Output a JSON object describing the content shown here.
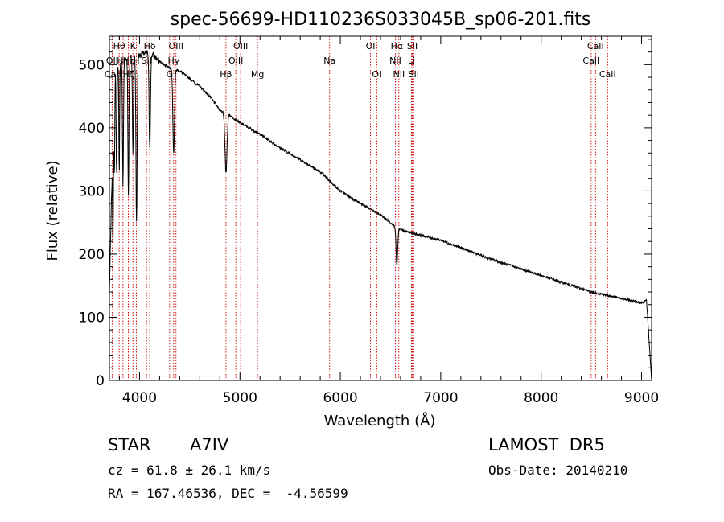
{
  "chart_data": {
    "type": "line",
    "title": "spec-56699-HD110236S033045B_sp06-201.fits",
    "xlabel": "Wavelength (Å)",
    "ylabel": "Flux (relative)",
    "xlim": [
      3700,
      9100
    ],
    "ylim": [
      0,
      545
    ],
    "xticks": [
      4000,
      5000,
      6000,
      7000,
      8000,
      9000
    ],
    "yticks": [
      0,
      100,
      200,
      300,
      400,
      500
    ],
    "grid": false,
    "line_color": "#000000",
    "marker_color": "#cc0000",
    "continuum": {
      "x": [
        3700,
        3750,
        3800,
        3900,
        4000,
        4100,
        4200,
        4300,
        4400,
        4500,
        4600,
        4700,
        4800,
        4900,
        5000,
        5200,
        5400,
        5600,
        5800,
        6000,
        6200,
        6400,
        6600,
        6800,
        7000,
        7200,
        7500,
        8000,
        8500,
        9000,
        9050,
        9100
      ],
      "y": [
        140,
        490,
        505,
        510,
        515,
        520,
        505,
        495,
        490,
        478,
        465,
        450,
        428,
        420,
        408,
        390,
        368,
        350,
        330,
        300,
        280,
        262,
        238,
        230,
        222,
        210,
        192,
        166,
        140,
        123,
        126,
        0
      ]
    },
    "absorption_lines": [
      {
        "x": 3736,
        "depth": 180,
        "width": 4
      },
      {
        "x": 3750,
        "depth": 160,
        "width": 4
      },
      {
        "x": 3771,
        "depth": 170,
        "width": 4
      },
      {
        "x": 3798,
        "depth": 180,
        "width": 4
      },
      {
        "x": 3835,
        "depth": 200,
        "width": 5
      },
      {
        "x": 3889,
        "depth": 215,
        "width": 5
      },
      {
        "x": 3934,
        "depth": 150,
        "width": 5
      },
      {
        "x": 3970,
        "depth": 265,
        "width": 6
      },
      {
        "x": 4102,
        "depth": 150,
        "width": 7
      },
      {
        "x": 4340,
        "depth": 135,
        "width": 8
      },
      {
        "x": 4861,
        "depth": 95,
        "width": 10
      },
      {
        "x": 6563,
        "depth": 60,
        "width": 8
      }
    ],
    "line_markers": [
      {
        "label": "Hθ",
        "x": 3797,
        "row": 1
      },
      {
        "label": "K",
        "x": 3934,
        "row": 1
      },
      {
        "label": "Hδ",
        "x": 4102,
        "row": 1
      },
      {
        "label": "OIII",
        "x": 4363,
        "row": 1
      },
      {
        "label": "OIII",
        "x": 5007,
        "row": 1
      },
      {
        "label": "OI",
        "x": 6300,
        "row": 1
      },
      {
        "label": "Hα",
        "x": 6563,
        "row": 1
      },
      {
        "label": "SII",
        "x": 6717,
        "row": 1
      },
      {
        "label": "CaII",
        "x": 8542,
        "row": 1
      },
      {
        "label": "OII",
        "x": 3727,
        "row": 2
      },
      {
        "label": "Hη",
        "x": 3835,
        "row": 2
      },
      {
        "label": "Hε",
        "x": 3889,
        "row": 2
      },
      {
        "label": "H",
        "x": 3968,
        "row": 2
      },
      {
        "label": "SII",
        "x": 4070,
        "row": 2
      },
      {
        "label": "Hγ",
        "x": 4340,
        "row": 2
      },
      {
        "label": "OIII",
        "x": 4959,
        "row": 2
      },
      {
        "label": "Na",
        "x": 5893,
        "row": 2
      },
      {
        "label": "NII",
        "x": 6548,
        "row": 2
      },
      {
        "label": "Li",
        "x": 6708,
        "row": 2
      },
      {
        "label": "CaII",
        "x": 8498,
        "row": 2
      },
      {
        "label": "CaII",
        "x": 3734,
        "row": 3
      },
      {
        "label": "Hζ",
        "x": 3889,
        "row": 3
      },
      {
        "label": "G",
        "x": 4300,
        "row": 3
      },
      {
        "label": "Hβ",
        "x": 4861,
        "row": 3
      },
      {
        "label": "Mg",
        "x": 5175,
        "row": 3
      },
      {
        "label": "OI",
        "x": 6363,
        "row": 3
      },
      {
        "label": "NII",
        "x": 6583,
        "row": 3
      },
      {
        "label": "SII",
        "x": 6731,
        "row": 3
      },
      {
        "label": "CaII",
        "x": 8662,
        "row": 3
      }
    ]
  },
  "info": {
    "object_class": "STAR",
    "subclass": "A7IV",
    "survey": "LAMOST  DR5",
    "redshift": "cz = 61.8 ± 26.1 km/s",
    "obs_date": "Obs-Date: 20140210",
    "coords": "RA = 167.46536, DEC =  -4.56599"
  }
}
